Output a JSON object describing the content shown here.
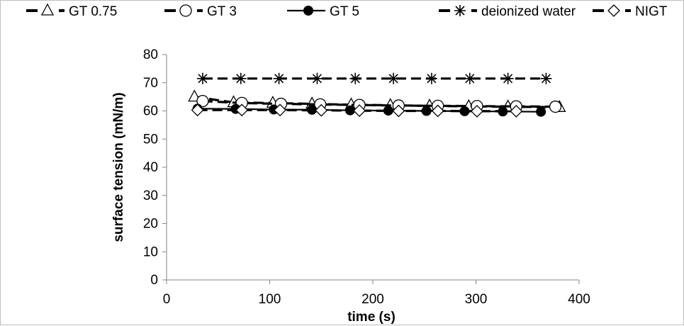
{
  "chart_data": {
    "type": "line",
    "title": "",
    "xlabel": "time (s)",
    "ylabel": "surface tension (mN/m)",
    "xlim": [
      0,
      400
    ],
    "ylim": [
      0,
      80
    ],
    "xticks": [
      0,
      100,
      200,
      300,
      400
    ],
    "yticks": [
      0,
      10,
      20,
      30,
      40,
      50,
      60,
      70,
      80
    ],
    "grid": false,
    "legend_position": "top",
    "series": [
      {
        "name": "GT 0.75",
        "marker": "triangle-open",
        "line": "dashed",
        "color": "#000000",
        "x": [
          27,
          65,
          103,
          141,
          179,
          217,
          255,
          293,
          331,
          381
        ],
        "y": [
          65.0,
          63.0,
          62.8,
          62.5,
          62.2,
          62.0,
          61.8,
          61.6,
          61.5,
          61.3
        ]
      },
      {
        "name": "GT 3",
        "marker": "circle-open",
        "line": "dashed",
        "color": "#000000",
        "x": [
          35,
          73,
          111,
          149,
          187,
          225,
          263,
          301,
          339,
          377
        ],
        "y": [
          63.5,
          62.8,
          62.5,
          62.3,
          62.1,
          61.9,
          61.8,
          61.7,
          61.6,
          61.5
        ]
      },
      {
        "name": "GT 5",
        "marker": "circle-filled",
        "line": "solid",
        "color": "#000000",
        "x": [
          30,
          67,
          104,
          141,
          178,
          215,
          252,
          289,
          326,
          363
        ],
        "y": [
          60.8,
          60.7,
          60.5,
          60.4,
          60.2,
          60.1,
          60.0,
          59.9,
          59.8,
          59.7
        ]
      },
      {
        "name": "deionized water",
        "marker": "asterisk",
        "line": "dashed",
        "color": "#000000",
        "x": [
          35,
          72,
          109,
          146,
          183,
          220,
          257,
          294,
          331,
          368
        ],
        "y": [
          71.5,
          71.5,
          71.5,
          71.5,
          71.5,
          71.5,
          71.5,
          71.5,
          71.5,
          71.5
        ]
      },
      {
        "name": "NIGT",
        "marker": "diamond-open",
        "line": "dashed",
        "color": "#000000",
        "x": [
          30,
          73,
          110,
          150,
          187,
          225,
          263,
          301,
          339
        ],
        "y": [
          60.3,
          60.3,
          60.3,
          60.2,
          60.1,
          60.0,
          60.0,
          59.9,
          59.9
        ]
      }
    ]
  }
}
